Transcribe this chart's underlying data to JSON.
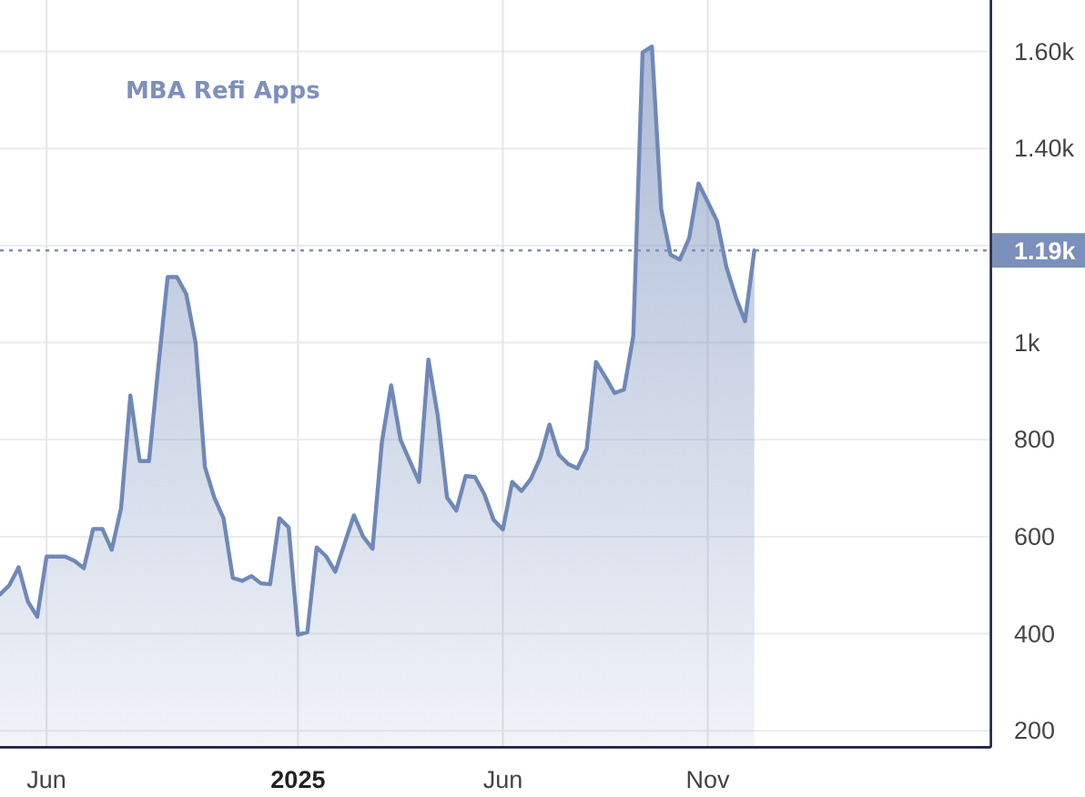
{
  "chart_data": {
    "type": "area",
    "title": "MBA Refi Apps",
    "categories": [
      null,
      null,
      null,
      null,
      null,
      "Jun",
      null,
      null,
      null,
      null,
      null,
      null,
      null,
      null,
      null,
      null,
      null,
      null,
      null,
      null,
      null,
      null,
      null,
      null,
      null,
      null,
      null,
      null,
      null,
      null,
      null,
      null,
      "2025",
      null,
      null,
      null,
      null,
      null,
      null,
      null,
      null,
      null,
      null,
      null,
      null,
      null,
      null,
      null,
      null,
      null,
      null,
      null,
      null,
      null,
      "Jun",
      null,
      null,
      null,
      null,
      null,
      null,
      null,
      null,
      null,
      null,
      null,
      null,
      null,
      null,
      null,
      null,
      null,
      null,
      null,
      null,
      null,
      "Nov",
      null,
      null,
      null,
      null,
      null
    ],
    "series": [
      {
        "color": "#7088b8",
        "values": [
          481,
          500,
          537,
          466,
          435,
          559,
          559,
          559,
          550,
          535,
          616,
          616,
          573,
          659,
          891,
          756,
          756,
          950,
          1135,
          1135,
          1100,
          1000,
          744,
          681,
          638,
          515,
          509,
          519,
          504,
          502,
          638,
          619,
          398,
          403,
          578,
          560,
          528,
          586,
          644,
          600,
          575,
          794,
          912,
          800,
          756,
          713,
          965,
          850,
          681,
          654,
          725,
          723,
          688,
          635,
          615,
          713,
          694,
          719,
          762,
          831,
          769,
          750,
          741,
          781,
          960,
          929,
          896,
          903,
          1013,
          1598,
          1610,
          1275,
          1181,
          1171,
          1215,
          1328,
          1290,
          1250,
          1156,
          1094,
          1044,
          1190
        ]
      }
    ],
    "ylim": [
      166,
      1706
    ],
    "yticks": [
      200,
      400,
      600,
      800,
      {
        "value": 1000,
        "label": "1k"
      },
      {
        "value": 1200,
        "label": null
      },
      {
        "value": 1400,
        "label": "1.40k"
      },
      {
        "value": 1600,
        "label": "1.60k"
      }
    ],
    "grid": true,
    "ref_lines": [
      {
        "axis": "y",
        "value": 1190,
        "label": "1.19k",
        "color": "#7b90bb",
        "line_style": "dotted"
      }
    ]
  }
}
